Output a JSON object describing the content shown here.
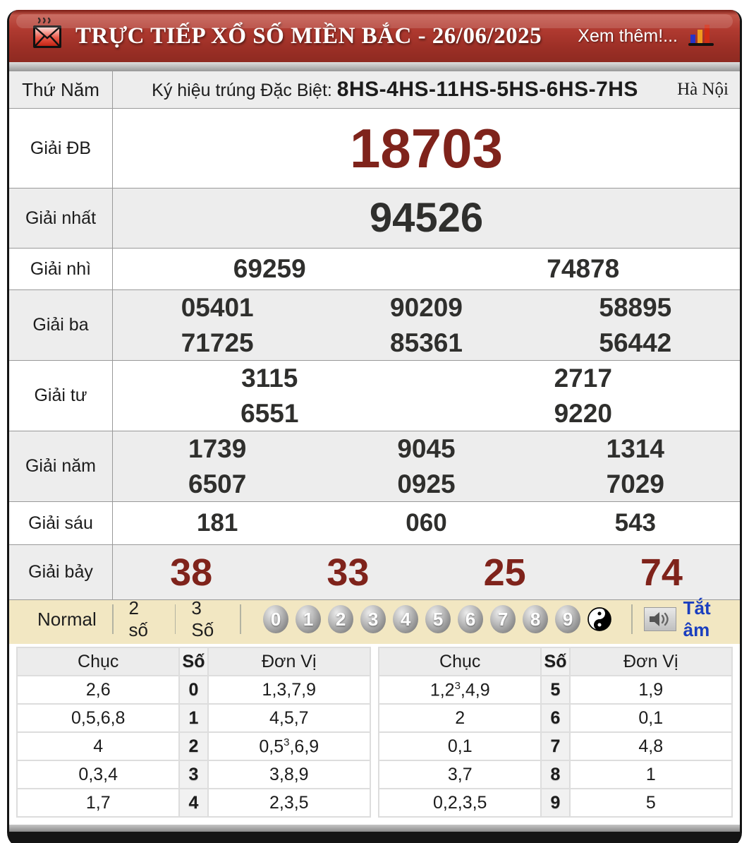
{
  "header": {
    "title": "TRỰC TIẾP XỔ SỐ MIỀN BẮC - 26/06/2025",
    "more_link": "Xem thêm!...",
    "envelope_icon": "hot-mail-envelope",
    "chart_icon": "bar-chart"
  },
  "info_row": {
    "day": "Thứ Năm",
    "sign_label": "Ký hiệu trúng Đặc Biệt: ",
    "sign_value": "8HS-4HS-11HS-5HS-6HS-7HS",
    "province": "Hà Nội"
  },
  "results": [
    {
      "label": "Giải ĐB",
      "style": "special",
      "rows": [
        [
          "18703"
        ]
      ]
    },
    {
      "label": "Giải nhất",
      "style": "first",
      "rows": [
        [
          "94526"
        ]
      ]
    },
    {
      "label": "Giải nhì",
      "style": "plain",
      "rows": [
        [
          "69259",
          "74878"
        ]
      ]
    },
    {
      "label": "Giải ba",
      "style": "plain",
      "rows": [
        [
          "05401",
          "90209",
          "58895"
        ],
        [
          "71725",
          "85361",
          "56442"
        ]
      ]
    },
    {
      "label": "Giải tư",
      "style": "plain",
      "rows": [
        [
          "3115",
          "2717"
        ],
        [
          "6551",
          "9220"
        ]
      ]
    },
    {
      "label": "Giải năm",
      "style": "plain",
      "rows": [
        [
          "1739",
          "9045",
          "1314"
        ],
        [
          "6507",
          "0925",
          "7029"
        ]
      ]
    },
    {
      "label": "Giải sáu",
      "style": "six",
      "rows": [
        [
          "181",
          "060",
          "543"
        ]
      ]
    },
    {
      "label": "Giải bảy",
      "style": "seven",
      "rows": [
        [
          "38",
          "33",
          "25",
          "74"
        ]
      ]
    }
  ],
  "toolbar": {
    "modes": [
      "Normal",
      "2 số",
      "3 Số"
    ],
    "digits": [
      "0",
      "1",
      "2",
      "3",
      "4",
      "5",
      "6",
      "7",
      "8",
      "9"
    ],
    "yinyang_icon": "yin-yang",
    "speaker_icon": "speaker",
    "mute_label": "Tắt âm",
    "mute_color": "#1b3fbf"
  },
  "summary_tables": [
    {
      "headers": [
        "Chục",
        "Số",
        "Đơn Vị"
      ],
      "rows": [
        [
          "2,6",
          "0",
          "1,3,7,9"
        ],
        [
          "0,5,6,8",
          "1",
          "4,5,7"
        ],
        [
          "4",
          "2",
          "0,5^3,6,9"
        ],
        [
          "0,3,4",
          "3",
          "3,8,9"
        ],
        [
          "1,7",
          "4",
          "2,3,5"
        ]
      ]
    },
    {
      "headers": [
        "Chục",
        "Số",
        "Đơn Vị"
      ],
      "rows": [
        [
          "1,2^3,4,9",
          "5",
          "1,9"
        ],
        [
          "2",
          "6",
          "0,1"
        ],
        [
          "0,1",
          "7",
          "4,8"
        ],
        [
          "3,7",
          "8",
          "1"
        ],
        [
          "0,2,3,5",
          "9",
          "5"
        ]
      ]
    }
  ],
  "colors": {
    "accent_red": "#7f231b",
    "header_red": "#9c2f26",
    "toolbar_cream": "#f2e7c2",
    "link_blue": "#1b3fbf",
    "row_alt_gray": "#ededed"
  }
}
